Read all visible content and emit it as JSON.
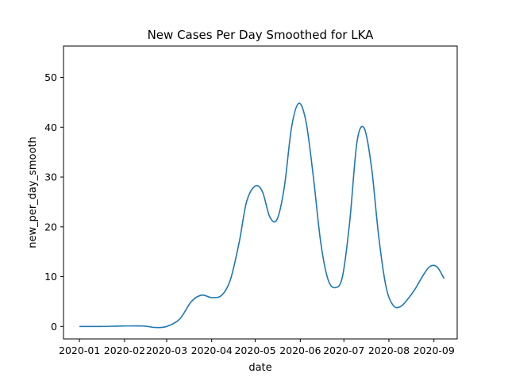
{
  "chart_data": {
    "type": "line",
    "title": "New Cases Per Day Smoothed for LKA",
    "xlabel": "date",
    "ylabel": "new_per_day_smooth",
    "x_ticks": [
      "2020-01",
      "2020-02",
      "2020-03",
      "2020-04",
      "2020-05",
      "2020-06",
      "2020-07",
      "2020-08",
      "2020-09"
    ],
    "y_ticks": [
      "0",
      "10",
      "20",
      "30",
      "40",
      "50"
    ],
    "ylim": [
      -2.5,
      56.3
    ],
    "xlim": [
      "2019-12-21",
      "2020-09-17"
    ],
    "grid": false,
    "line_color": "#1f77b4",
    "series": [
      {
        "x": [
          "2020-01-01",
          "2020-01-15",
          "2020-01-31",
          "2020-02-14",
          "2020-02-22",
          "2020-03-01",
          "2020-03-10",
          "2020-03-18",
          "2020-03-25",
          "2020-04-01",
          "2020-04-08",
          "2020-04-14",
          "2020-04-20",
          "2020-04-25",
          "2020-05-01",
          "2020-05-06",
          "2020-05-11",
          "2020-05-16",
          "2020-05-21",
          "2020-05-26",
          "2020-05-31",
          "2020-06-05",
          "2020-06-10",
          "2020-06-15",
          "2020-06-20",
          "2020-06-25",
          "2020-06-30",
          "2020-07-05",
          "2020-07-10",
          "2020-07-15",
          "2020-07-20",
          "2020-07-25",
          "2020-07-30",
          "2020-08-04",
          "2020-08-09",
          "2020-08-14",
          "2020-08-19",
          "2020-08-24",
          "2020-08-29",
          "2020-09-03",
          "2020-09-08"
        ],
        "y": [
          0,
          0,
          0.1,
          0.1,
          -0.2,
          0,
          1.5,
          5,
          6.3,
          5.8,
          6.3,
          9.5,
          17,
          25,
          28.2,
          27,
          22,
          21.5,
          28,
          40,
          44.8,
          41,
          30,
          17,
          9.5,
          7.8,
          10,
          21,
          37,
          39.8,
          32,
          18,
          8,
          4.2,
          4,
          5.5,
          7.5,
          10,
          12,
          12,
          9.6
        ]
      }
    ]
  }
}
